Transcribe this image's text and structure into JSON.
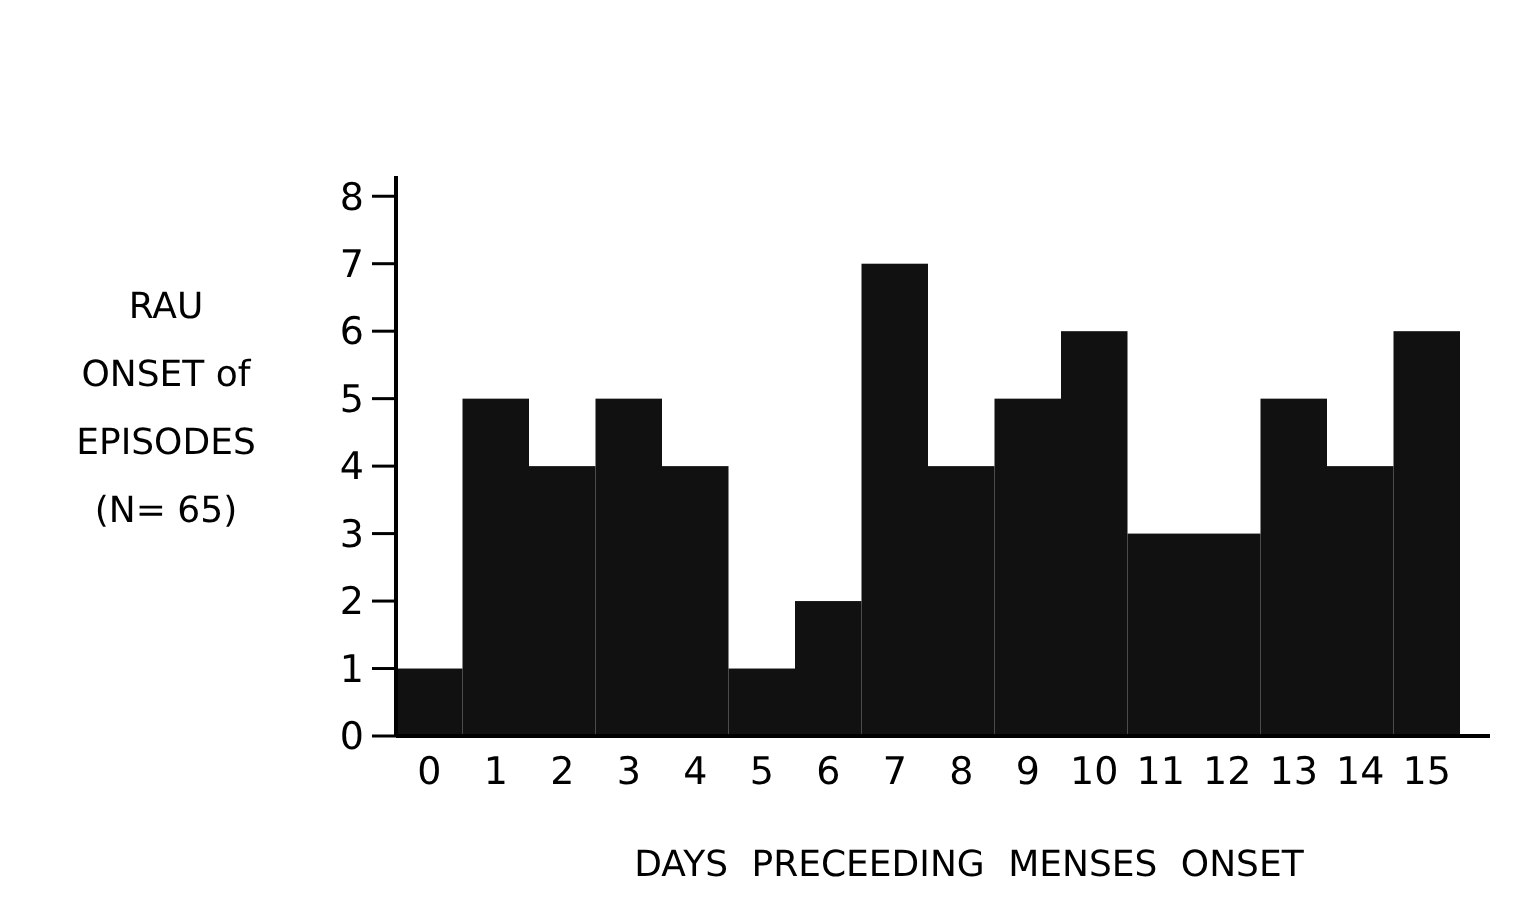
{
  "chart_data": {
    "type": "bar",
    "xlabel": "DAYS  PRECEEDING  MENSES  ONSET",
    "ylabel": "RAU\nONSET of\nEPISODES\n(N= 65)",
    "categories": [
      "0",
      "1",
      "2",
      "3",
      "4",
      "5",
      "6",
      "7",
      "8",
      "9",
      "10",
      "11",
      "12",
      "13",
      "14",
      "15"
    ],
    "values": [
      1,
      5,
      4,
      5,
      4,
      1,
      2,
      7,
      4,
      5,
      6,
      3,
      3,
      5,
      4,
      6
    ],
    "color": "#111111",
    "ylim": [
      0,
      8.3
    ],
    "yticks": [
      0,
      1,
      2,
      3,
      4,
      5,
      6,
      7,
      8
    ],
    "grid": false
  }
}
